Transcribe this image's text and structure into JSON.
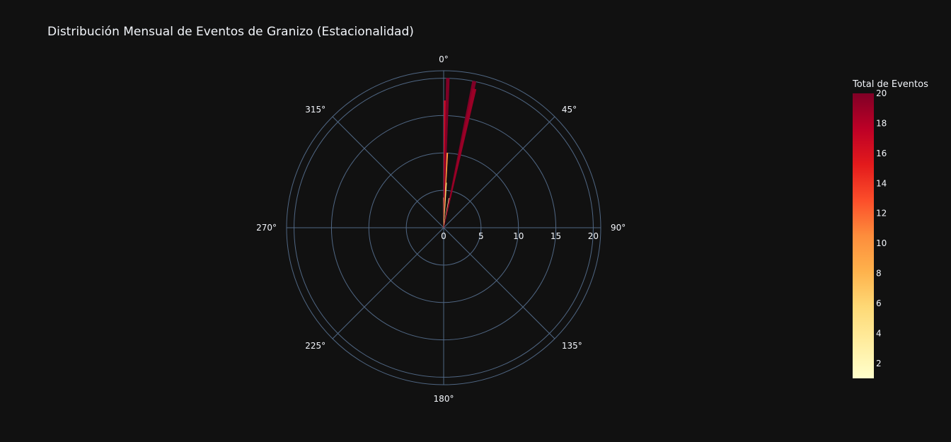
{
  "chart_data": {
    "type": "polar-bar",
    "title": "Distribución Mensual de Eventos de Granizo (Estacionalidad)",
    "radial_axis": {
      "range": [
        0,
        21
      ],
      "tick_values": [
        0,
        5,
        10,
        15,
        20
      ],
      "tick_labels": [
        "0",
        "5",
        "10",
        "15",
        "20"
      ]
    },
    "angular_axis": {
      "tick_values": [
        0,
        45,
        90,
        135,
        180,
        225,
        270,
        315
      ],
      "tick_labels": [
        "0°",
        "45°",
        "90°",
        "135°",
        "180°",
        "225°",
        "270°",
        "315°"
      ],
      "direction": "clockwise",
      "rotation": "north"
    },
    "bars": [
      {
        "theta": 0.0,
        "r": 4,
        "width": 1.2
      },
      {
        "theta": 0.8,
        "r": 17,
        "width": 1.2
      },
      {
        "theta": 1.6,
        "r": 20,
        "width": 1.2
      },
      {
        "theta": 2.8,
        "r": 10,
        "width": 0.8
      },
      {
        "theta": 3.4,
        "r": 6,
        "width": 0.8
      },
      {
        "theta": 10.5,
        "r": 4,
        "width": 1.0
      },
      {
        "theta": 11.8,
        "r": 20,
        "width": 1.4
      },
      {
        "theta": 12.5,
        "r": 19,
        "width": 1.4
      }
    ],
    "colorbar": {
      "title": "Total de Eventos",
      "range": [
        1,
        20
      ],
      "tick_values": [
        2,
        4,
        6,
        8,
        10,
        12,
        14,
        16,
        18,
        20
      ],
      "tick_labels": [
        "2",
        "4",
        "6",
        "8",
        "10",
        "12",
        "14",
        "16",
        "18",
        "20"
      ],
      "colorscale": [
        "#ffffcc",
        "#ffeda0",
        "#fed976",
        "#feb24c",
        "#fd8d3c",
        "#fc4e2a",
        "#e31a1c",
        "#bd0026",
        "#800026"
      ]
    }
  }
}
